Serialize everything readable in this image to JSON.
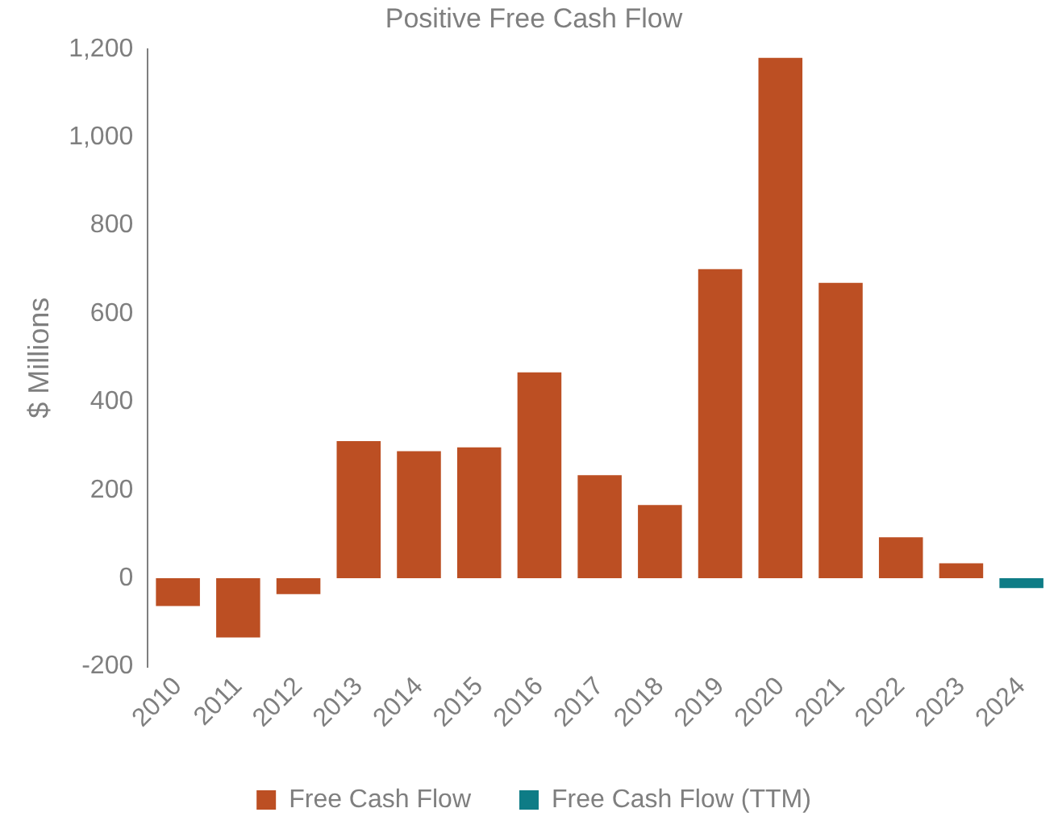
{
  "chart_data": {
    "type": "bar",
    "title": "Positive Free Cash Flow",
    "ylabel": "$ Millions",
    "categories": [
      "2010",
      "2011",
      "2012",
      "2013",
      "2014",
      "2015",
      "2016",
      "2017",
      "2018",
      "2019",
      "2020",
      "2021",
      "2022",
      "2023",
      "2024"
    ],
    "series": [
      {
        "name": "Free Cash Flow",
        "color": "#bc4f23",
        "values": [
          -63,
          -134,
          -36,
          311,
          288,
          297,
          467,
          234,
          166,
          701,
          1180,
          670,
          93,
          34,
          null
        ]
      },
      {
        "name": "Free Cash Flow (TTM)",
        "color": "#0e7c86",
        "values": [
          null,
          null,
          null,
          null,
          null,
          null,
          null,
          null,
          null,
          null,
          null,
          null,
          null,
          null,
          -22
        ]
      }
    ],
    "ylim": [
      -200,
      1200
    ],
    "yticks": [
      -200,
      0,
      200,
      400,
      600,
      800,
      {
        "value": 1000,
        "label": "1,000"
      },
      {
        "value": 1200,
        "label": "1,200"
      }
    ],
    "grid": false,
    "legend": "bottom"
  }
}
